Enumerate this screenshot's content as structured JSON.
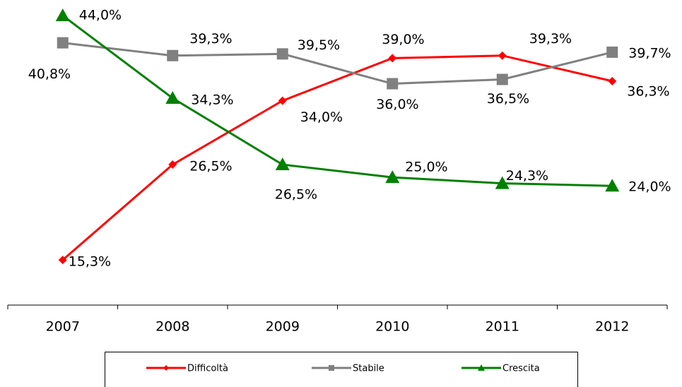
{
  "chart_data": {
    "type": "line",
    "categories": [
      "2007",
      "2008",
      "2009",
      "2010",
      "2011",
      "2012"
    ],
    "ylim": [
      10,
      45
    ],
    "series": [
      {
        "name": "Difficoltà",
        "color": "#ff0000",
        "marker": "diamond",
        "values": [
          15.3,
          26.5,
          34.0,
          39.0,
          39.3,
          36.3
        ],
        "value_labels": [
          "15,3%",
          "26,5%",
          "34,0%",
          "39,0%",
          "39,3%",
          "36,3%"
        ]
      },
      {
        "name": "Stabile",
        "color": "#808080",
        "marker": "square",
        "values": [
          40.8,
          39.3,
          39.5,
          36.0,
          36.5,
          39.7
        ],
        "value_labels": [
          "40,8%",
          "39,3%",
          "39,5%",
          "36,0%",
          "36,5%",
          "39,7%"
        ]
      },
      {
        "name": "Crescita",
        "color": "#008000",
        "marker": "triangle",
        "values": [
          44.0,
          34.3,
          26.5,
          25.0,
          24.3,
          24.0
        ],
        "value_labels": [
          "44,0%",
          "34,3%",
          "26,5%",
          "25,0%",
          "24,3%",
          "24,0%"
        ]
      }
    ]
  }
}
